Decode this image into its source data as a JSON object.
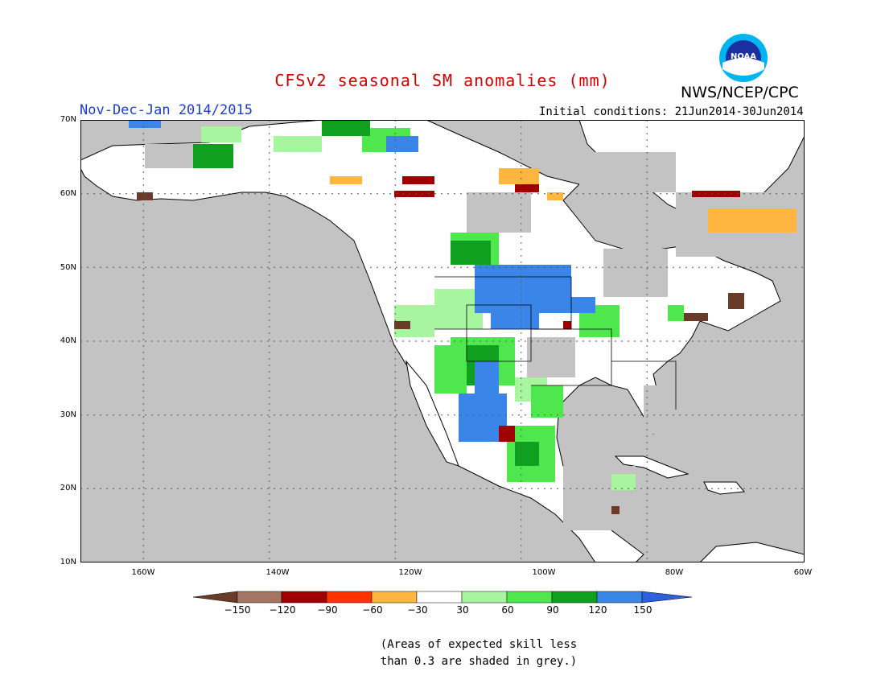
{
  "header": {
    "title": "CFSv2 seasonal SM anomalies (mm)",
    "agency": "NWS/NCEP/CPC",
    "logo_text": "NOAA",
    "period": "Nov-Dec-Jan 2014/2015",
    "initial_conditions": "Initial conditions: 21Jun2014-30Jun2014"
  },
  "map": {
    "lon_range": [
      -175,
      -60
    ],
    "lat_range": [
      10,
      70
    ],
    "lat_labels": [
      "70N",
      "60N",
      "50N",
      "40N",
      "30N",
      "20N",
      "10N"
    ],
    "lon_labels": [
      "160W",
      "140W",
      "120W",
      "100W",
      "80W",
      "60W"
    ],
    "colors": {
      "ocean": "#c3c3c3",
      "land": "#ffffff",
      "low_skill": "#c3c3c3"
    }
  },
  "colorbar": {
    "labels": [
      "−150",
      "−120",
      "−90",
      "−60",
      "−30",
      "30",
      "60",
      "90",
      "120",
      "150"
    ],
    "colors": [
      "#6b3b2a",
      "#a47560",
      "#a00000",
      "#ff3300",
      "#ffb640",
      "#ffffff",
      "#a8f5a0",
      "#4ee84e",
      "#10a020",
      "#3a85e8",
      "#2d60dd"
    ]
  },
  "note": {
    "line1": "(Areas of expected skill less",
    "line2": "than 0.3 are shaded in grey.)"
  }
}
